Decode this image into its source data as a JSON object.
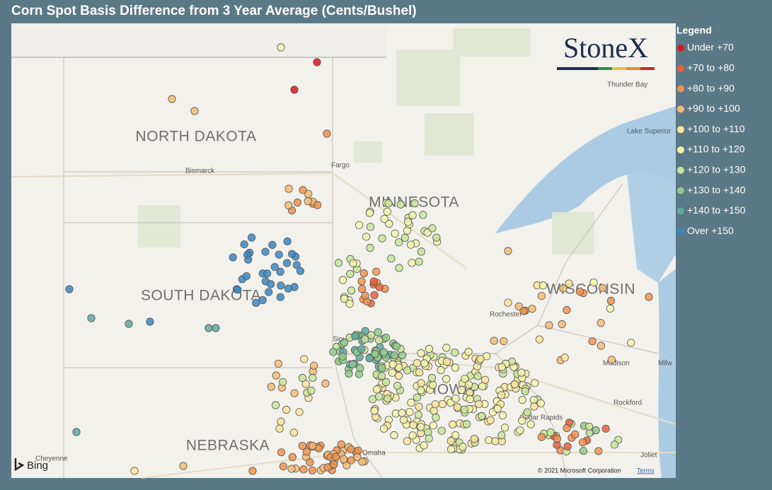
{
  "title": "Corn Spot Basis Difference from 3 Year Average (Cents/Bushel)",
  "legend": {
    "title": "Legend",
    "items": [
      {
        "label": "Under +70",
        "color": "#d7191c"
      },
      {
        "label": "+70 to +80",
        "color": "#e8603a"
      },
      {
        "label": "+80 to +90",
        "color": "#f0924f"
      },
      {
        "label": "+90 to +100",
        "color": "#f5bc74"
      },
      {
        "label": "+100 to +110",
        "color": "#fbe49a"
      },
      {
        "label": "+110 to +120",
        "color": "#f2f3ab"
      },
      {
        "label": "+120 to +130",
        "color": "#c7e59a"
      },
      {
        "label": "+130 to +140",
        "color": "#8fca8a"
      },
      {
        "label": "+140 to +150",
        "color": "#5fa8a0"
      },
      {
        "label": "Over +150",
        "color": "#3a87c5"
      }
    ]
  },
  "map": {
    "states": [
      "NORTH DAKOTA",
      "SOUTH DAKOTA",
      "MINNESOTA",
      "WISCONSIN",
      "IOWA",
      "NEBRASKA"
    ],
    "cities": [
      "Bismarck",
      "Fargo",
      "Thunder Bay",
      "Lake Superior",
      "Rochester",
      "Madison",
      "Milw",
      "Rockford",
      "Cedar Rapids",
      "Omaha",
      "Joliet",
      "Cheyenne",
      "Sioux"
    ],
    "logo": "StoneX",
    "attribution": "Bing",
    "copyright": "© 2021 Microsoft Corporation",
    "terms": "Terms"
  }
}
